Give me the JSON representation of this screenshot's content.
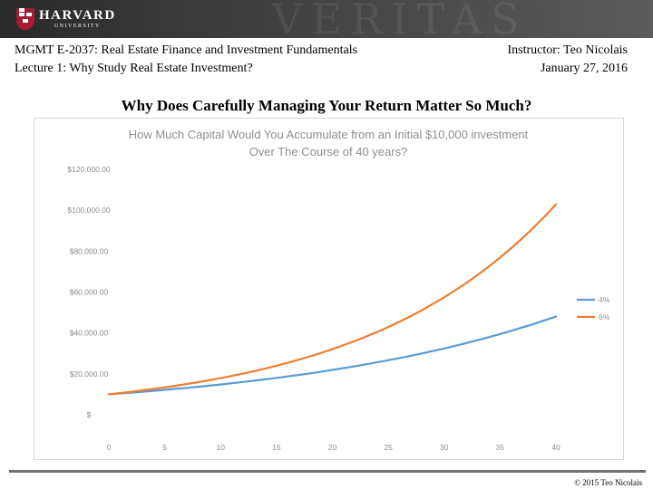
{
  "header": {
    "logo_main": "HARVARD",
    "logo_sub": "UNIVERSITY",
    "course": "MGMT E-2037: Real Estate Finance and Investment Fundamentals",
    "lecture": "Lecture 1: Why Study Real Estate Investment?",
    "instructor": "Instructor: Teo Nicolais",
    "date": "January 27, 2016"
  },
  "slide_title": "Why Does Carefully Managing Your Return Matter So Much?",
  "footer": {
    "copyright": "© 2015 Teo Nicolais"
  },
  "colors": {
    "series_4pct": "#5b9bd5",
    "series_6pct": "#ed7d31",
    "grid": "#d9d9d9",
    "text_gray": "#8c8c8c"
  },
  "chart_data": {
    "type": "line",
    "title": "How Much Capital Would You Accumulate from an Initial $10,000 investment Over The Course of 40 years?",
    "title_lines": [
      "How Much Capital Would You Accumulate from an Initial $10,000 investment",
      "Over The Course of 40 years?"
    ],
    "xlabel": "",
    "ylabel": "",
    "xlim": [
      0,
      40
    ],
    "ylim": [
      0,
      120000
    ],
    "x_ticks": [
      0,
      5,
      10,
      15,
      20,
      25,
      30,
      35,
      40
    ],
    "y_ticks": [
      0,
      20000,
      40000,
      60000,
      80000,
      100000,
      120000
    ],
    "y_tick_labels": [
      "$",
      "$20,000.00",
      "$40,000.00",
      "$60,000.00",
      "$80,000.00",
      "$100,000.00",
      "$120,000.00"
    ],
    "grid": false,
    "legend_position": "right",
    "x": [
      0,
      1,
      2,
      3,
      4,
      5,
      6,
      7,
      8,
      9,
      10,
      11,
      12,
      13,
      14,
      15,
      16,
      17,
      18,
      19,
      20,
      21,
      22,
      23,
      24,
      25,
      26,
      27,
      28,
      29,
      30,
      31,
      32,
      33,
      34,
      35,
      36,
      37,
      38,
      39,
      40
    ],
    "series": [
      {
        "name": "4%",
        "color": "#5b9bd5",
        "values": [
          10000,
          10400,
          10816,
          11249,
          11699,
          12167,
          12653,
          13159,
          13686,
          14233,
          14802,
          15395,
          16010,
          16651,
          17317,
          18009,
          18730,
          19479,
          20258,
          21068,
          21911,
          22788,
          23699,
          24647,
          25633,
          26658,
          27725,
          28834,
          29987,
          31187,
          32434,
          33731,
          35081,
          36484,
          37943,
          39461,
          41039,
          42681,
          44388,
          46164,
          48010
        ]
      },
      {
        "name": "6%",
        "color": "#ed7d31",
        "values": [
          10000,
          10600,
          11236,
          11910,
          12625,
          13382,
          14185,
          15036,
          15938,
          16895,
          17908,
          18983,
          20122,
          21329,
          22609,
          23966,
          25404,
          26928,
          28543,
          30256,
          32071,
          33996,
          36035,
          38197,
          40489,
          42919,
          45494,
          48223,
          51117,
          54184,
          57435,
          60881,
          64534,
          68406,
          72510,
          76861,
          81473,
          86361,
          91543,
          97035,
          102857
        ]
      }
    ]
  }
}
